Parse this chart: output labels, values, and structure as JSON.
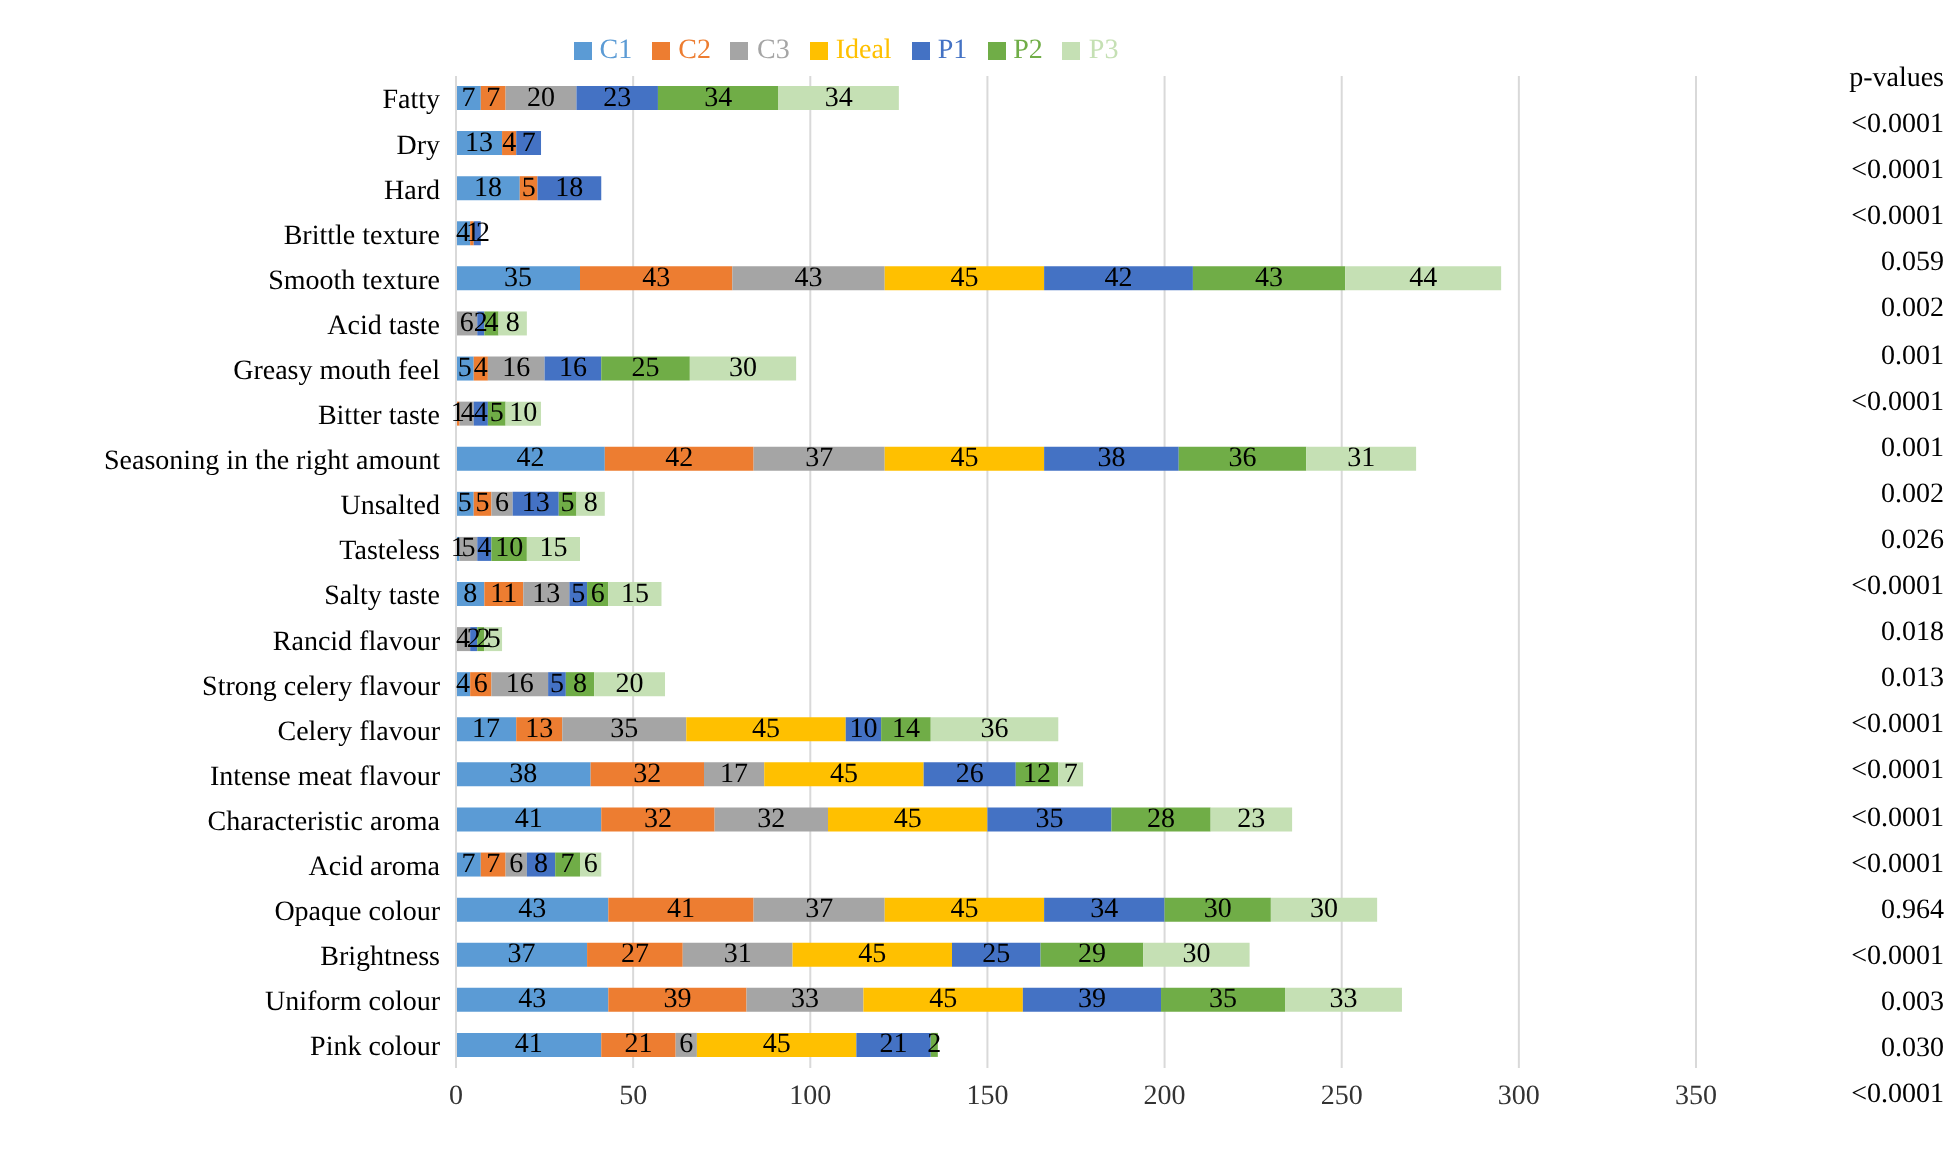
{
  "chart_data": {
    "type": "bar",
    "orientation": "horizontal",
    "stacked": true,
    "data_labels": true,
    "grid": "x",
    "legend": "top",
    "xlim": [
      0,
      350
    ],
    "xticks": [
      0,
      50,
      100,
      150,
      200,
      250,
      300,
      350
    ],
    "categories": [
      "Fatty",
      "Dry",
      "Hard",
      "Brittle  texture",
      "Smooth texture",
      "Acid taste",
      "Greasy mouth feel",
      "Bitter taste",
      "Seasoning in the right amount",
      "Unsalted",
      "Tasteless",
      "Salty taste",
      "Rancid flavour",
      "Strong celery flavour",
      "Celery flavour",
      "Intense meat flavour",
      "Characteristic aroma",
      "Acid aroma",
      "Opaque colour",
      "Brightness",
      "Uniform colour",
      "Pink colour"
    ],
    "series": [
      {
        "name": "C1",
        "color": "#5b9bd5",
        "values": [
          7,
          13,
          18,
          4,
          35,
          null,
          5,
          null,
          42,
          5,
          1,
          8,
          null,
          4,
          17,
          38,
          41,
          7,
          43,
          37,
          43,
          41
        ]
      },
      {
        "name": "C2",
        "color": "#ed7d31",
        "values": [
          7,
          4,
          5,
          1,
          43,
          null,
          4,
          1,
          42,
          5,
          null,
          11,
          null,
          6,
          13,
          32,
          32,
          7,
          41,
          27,
          39,
          21
        ]
      },
      {
        "name": "C3",
        "color": "#a5a5a5",
        "values": [
          20,
          null,
          null,
          null,
          43,
          6,
          16,
          4,
          37,
          6,
          5,
          13,
          4,
          16,
          35,
          17,
          32,
          6,
          37,
          31,
          33,
          6
        ]
      },
      {
        "name": "Ideal",
        "color": "#ffc000",
        "values": [
          null,
          null,
          null,
          null,
          45,
          null,
          null,
          null,
          45,
          null,
          null,
          null,
          null,
          null,
          45,
          45,
          45,
          null,
          45,
          45,
          45,
          45
        ]
      },
      {
        "name": "P1",
        "color": "#4472c4",
        "values": [
          23,
          7,
          18,
          2,
          42,
          2,
          16,
          4,
          38,
          13,
          4,
          5,
          2,
          5,
          10,
          26,
          35,
          8,
          34,
          25,
          39,
          21
        ]
      },
      {
        "name": "P2",
        "color": "#70ad47",
        "values": [
          34,
          null,
          null,
          null,
          43,
          4,
          25,
          5,
          36,
          5,
          10,
          6,
          2,
          8,
          14,
          12,
          28,
          7,
          30,
          29,
          35,
          2
        ]
      },
      {
        "name": "P3",
        "color": "#c5e0b4",
        "values": [
          34,
          null,
          null,
          null,
          44,
          8,
          30,
          10,
          31,
          8,
          15,
          15,
          5,
          20,
          36,
          7,
          23,
          6,
          30,
          30,
          33,
          null
        ]
      }
    ],
    "annotations": [
      "p-values",
      "<0.0001",
      "<0.0001",
      "<0.0001",
      "0.059",
      "0.002",
      "0.001",
      "<0.0001",
      "0.001",
      "0.002",
      "0.026",
      "<0.0001",
      "0.018",
      "0.013",
      "<0.0001",
      "<0.0001",
      "<0.0001",
      "<0.0001",
      "0.964",
      "<0.0001",
      "0.003",
      "0.030",
      "<0.0001"
    ]
  }
}
